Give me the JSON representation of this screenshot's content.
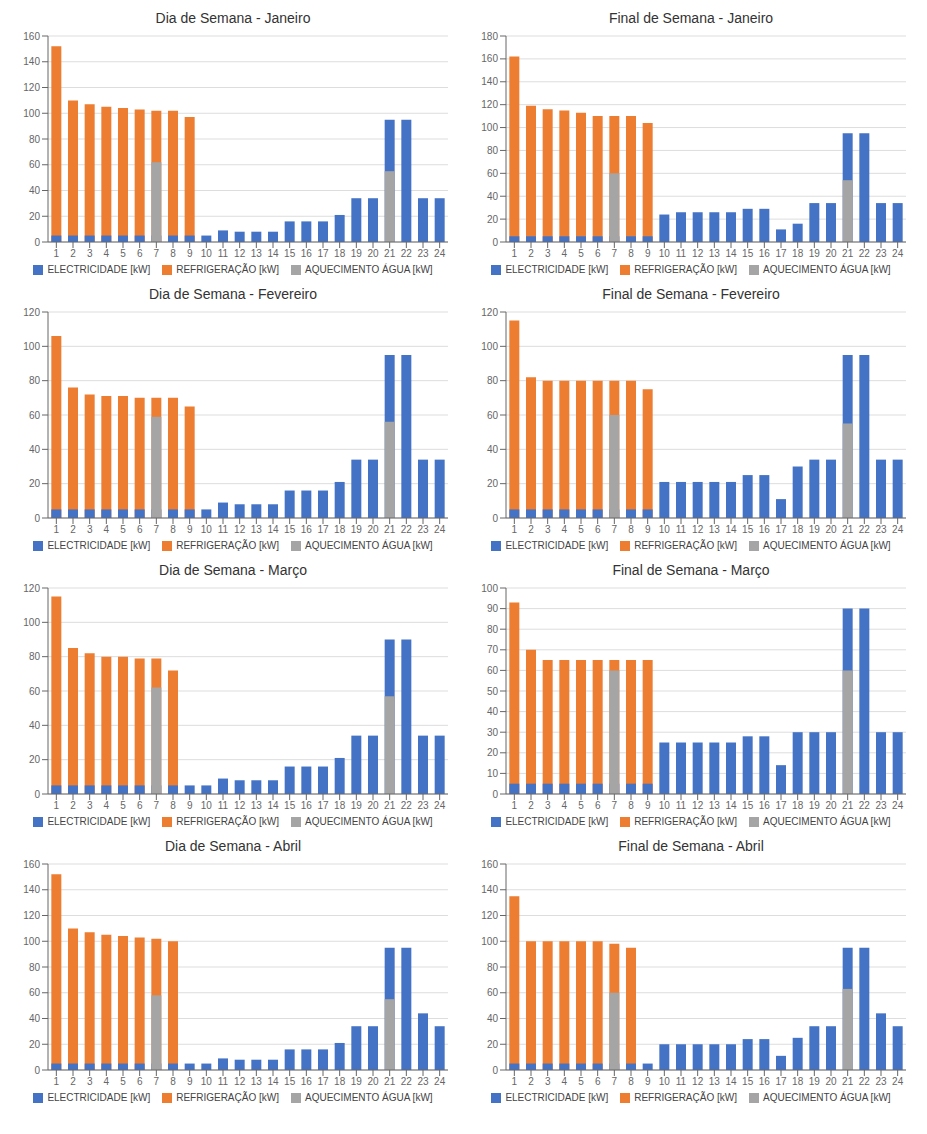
{
  "chart_data": [
    {
      "type": "bar",
      "title": "Dia de Semana - Janeiro",
      "categories": [
        "1",
        "2",
        "3",
        "4",
        "5",
        "6",
        "7",
        "8",
        "9",
        "10",
        "11",
        "12",
        "13",
        "14",
        "15",
        "16",
        "17",
        "18",
        "19",
        "20",
        "21",
        "22",
        "23",
        "24"
      ],
      "series": [
        {
          "name": "ELECTRICIDADE [kW]",
          "color": "#4472C4",
          "values": [
            5,
            5,
            5,
            5,
            5,
            5,
            5,
            5,
            5,
            5,
            9,
            8,
            8,
            8,
            16,
            16,
            16,
            21,
            34,
            34,
            95,
            95,
            34,
            34
          ]
        },
        {
          "name": "REFRIGERAÇÃO [kW]",
          "color": "#ED7D31",
          "values": [
            152,
            110,
            107,
            105,
            104,
            103,
            102,
            102,
            97,
            0,
            0,
            0,
            0,
            0,
            0,
            0,
            0,
            0,
            0,
            0,
            0,
            0,
            0,
            0
          ]
        },
        {
          "name": "AQUECIMENTO ÁGUA [kW]",
          "color": "#A5A5A5",
          "values": [
            0,
            0,
            0,
            0,
            0,
            0,
            62,
            0,
            0,
            0,
            0,
            0,
            0,
            0,
            0,
            0,
            0,
            0,
            0,
            0,
            55,
            0,
            0,
            0
          ]
        }
      ],
      "ylim": [
        0,
        160
      ],
      "yticks": [
        0,
        20,
        40,
        60,
        80,
        100,
        120,
        140,
        160
      ],
      "grid": true,
      "legend": "bottom",
      "stacked": false
    },
    {
      "type": "bar",
      "title": "Final de Semana - Janeiro",
      "categories": [
        "1",
        "2",
        "3",
        "4",
        "5",
        "6",
        "7",
        "8",
        "9",
        "10",
        "11",
        "12",
        "13",
        "14",
        "15",
        "16",
        "17",
        "18",
        "19",
        "20",
        "21",
        "22",
        "23",
        "24"
      ],
      "series": [
        {
          "name": "ELECTRICIDADE [kW]",
          "color": "#4472C4",
          "values": [
            5,
            5,
            5,
            5,
            5,
            5,
            5,
            5,
            5,
            24,
            26,
            26,
            26,
            26,
            29,
            29,
            11,
            16,
            34,
            34,
            95,
            95,
            34,
            34
          ]
        },
        {
          "name": "REFRIGERAÇÃO [kW]",
          "color": "#ED7D31",
          "values": [
            162,
            119,
            116,
            115,
            113,
            110,
            110,
            110,
            104,
            0,
            0,
            0,
            0,
            0,
            0,
            0,
            0,
            0,
            0,
            0,
            0,
            0,
            0,
            0
          ]
        },
        {
          "name": "AQUECIMENTO ÁGUA [kW]",
          "color": "#A5A5A5",
          "values": [
            0,
            0,
            0,
            0,
            0,
            0,
            60,
            0,
            0,
            0,
            0,
            0,
            0,
            0,
            0,
            0,
            0,
            0,
            0,
            0,
            54,
            0,
            0,
            0
          ]
        }
      ],
      "ylim": [
        0,
        180
      ],
      "yticks": [
        0,
        20,
        40,
        60,
        80,
        100,
        120,
        140,
        160,
        180
      ],
      "grid": true,
      "legend": "bottom",
      "stacked": false
    },
    {
      "type": "bar",
      "title": "Dia de Semana - Fevereiro",
      "categories": [
        "1",
        "2",
        "3",
        "4",
        "5",
        "6",
        "7",
        "8",
        "9",
        "10",
        "11",
        "12",
        "13",
        "14",
        "15",
        "16",
        "17",
        "18",
        "19",
        "20",
        "21",
        "22",
        "23",
        "24"
      ],
      "series": [
        {
          "name": "ELECTRICIDADE [kW]",
          "color": "#4472C4",
          "values": [
            5,
            5,
            5,
            5,
            5,
            5,
            5,
            5,
            5,
            5,
            9,
            8,
            8,
            8,
            16,
            16,
            16,
            21,
            34,
            34,
            95,
            95,
            34,
            34
          ]
        },
        {
          "name": "REFRIGERAÇÃO [kW]",
          "color": "#ED7D31",
          "values": [
            106,
            76,
            72,
            71,
            71,
            70,
            70,
            70,
            65,
            0,
            0,
            0,
            0,
            0,
            0,
            0,
            0,
            0,
            0,
            0,
            0,
            0,
            0,
            0
          ]
        },
        {
          "name": "AQUECIMENTO ÁGUA [kW]",
          "color": "#A5A5A5",
          "values": [
            0,
            0,
            0,
            0,
            0,
            0,
            59,
            0,
            0,
            0,
            0,
            0,
            0,
            0,
            0,
            0,
            0,
            0,
            0,
            0,
            56,
            0,
            0,
            0
          ]
        }
      ],
      "ylim": [
        0,
        120
      ],
      "yticks": [
        0,
        20,
        40,
        60,
        80,
        100,
        120
      ],
      "grid": true,
      "legend": "bottom",
      "stacked": false
    },
    {
      "type": "bar",
      "title": "Final de Semana - Fevereiro",
      "categories": [
        "1",
        "2",
        "3",
        "4",
        "5",
        "6",
        "7",
        "8",
        "9",
        "10",
        "11",
        "12",
        "13",
        "14",
        "15",
        "16",
        "17",
        "18",
        "19",
        "20",
        "21",
        "22",
        "23",
        "24"
      ],
      "series": [
        {
          "name": "ELECTRICIDADE [kW]",
          "color": "#4472C4",
          "values": [
            5,
            5,
            5,
            5,
            5,
            5,
            5,
            5,
            5,
            21,
            21,
            21,
            21,
            21,
            25,
            25,
            11,
            30,
            34,
            34,
            95,
            95,
            34,
            34
          ]
        },
        {
          "name": "REFRIGERAÇÃO [kW]",
          "color": "#ED7D31",
          "values": [
            115,
            82,
            80,
            80,
            80,
            80,
            80,
            80,
            75,
            0,
            0,
            0,
            0,
            0,
            0,
            0,
            0,
            0,
            0,
            0,
            0,
            0,
            0,
            0
          ]
        },
        {
          "name": "AQUECIMENTO ÁGUA [kW]",
          "color": "#A5A5A5",
          "values": [
            0,
            0,
            0,
            0,
            0,
            0,
            60,
            0,
            0,
            0,
            0,
            0,
            0,
            0,
            0,
            0,
            0,
            0,
            0,
            0,
            55,
            0,
            0,
            0
          ]
        }
      ],
      "ylim": [
        0,
        120
      ],
      "yticks": [
        0,
        20,
        40,
        60,
        80,
        100,
        120
      ],
      "grid": true,
      "legend": "bottom",
      "stacked": false
    },
    {
      "type": "bar",
      "title": "Dia de Semana - Março",
      "categories": [
        "1",
        "2",
        "3",
        "4",
        "5",
        "6",
        "7",
        "8",
        "9",
        "10",
        "11",
        "12",
        "13",
        "14",
        "15",
        "16",
        "17",
        "18",
        "19",
        "20",
        "21",
        "22",
        "23",
        "24"
      ],
      "series": [
        {
          "name": "ELECTRICIDADE [kW]",
          "color": "#4472C4",
          "values": [
            5,
            5,
            5,
            5,
            5,
            5,
            5,
            5,
            5,
            5,
            9,
            8,
            8,
            8,
            16,
            16,
            16,
            21,
            34,
            34,
            90,
            90,
            34,
            34
          ]
        },
        {
          "name": "REFRIGERAÇÃO [kW]",
          "color": "#ED7D31",
          "values": [
            115,
            85,
            82,
            80,
            80,
            79,
            79,
            72,
            0,
            0,
            0,
            0,
            0,
            0,
            0,
            0,
            0,
            0,
            0,
            0,
            0,
            0,
            0,
            0
          ]
        },
        {
          "name": "AQUECIMENTO ÁGUA [kW]",
          "color": "#A5A5A5",
          "values": [
            0,
            0,
            0,
            0,
            0,
            0,
            62,
            0,
            0,
            0,
            0,
            0,
            0,
            0,
            0,
            0,
            0,
            0,
            0,
            0,
            57,
            0,
            0,
            0
          ]
        }
      ],
      "ylim": [
        0,
        120
      ],
      "yticks": [
        0,
        20,
        40,
        60,
        80,
        100,
        120
      ],
      "grid": true,
      "legend": "bottom",
      "stacked": false
    },
    {
      "type": "bar",
      "title": "Final de Semana - Março",
      "categories": [
        "1",
        "2",
        "3",
        "4",
        "5",
        "6",
        "7",
        "8",
        "9",
        "10",
        "11",
        "12",
        "13",
        "14",
        "15",
        "16",
        "17",
        "18",
        "19",
        "20",
        "21",
        "22",
        "23",
        "24"
      ],
      "series": [
        {
          "name": "ELECTRICIDADE [kW]",
          "color": "#4472C4",
          "values": [
            5,
            5,
            5,
            5,
            5,
            5,
            5,
            5,
            5,
            25,
            25,
            25,
            25,
            25,
            28,
            28,
            14,
            30,
            30,
            30,
            90,
            90,
            30,
            30
          ]
        },
        {
          "name": "REFRIGERAÇÃO [kW]",
          "color": "#ED7D31",
          "values": [
            93,
            70,
            65,
            65,
            65,
            65,
            65,
            65,
            65,
            0,
            0,
            0,
            0,
            0,
            0,
            0,
            0,
            0,
            0,
            0,
            0,
            0,
            0,
            0
          ]
        },
        {
          "name": "AQUECIMENTO ÁGUA [kW]",
          "color": "#A5A5A5",
          "values": [
            0,
            0,
            0,
            0,
            0,
            0,
            60,
            0,
            0,
            0,
            0,
            0,
            0,
            0,
            0,
            0,
            0,
            0,
            0,
            0,
            60,
            0,
            0,
            0
          ]
        }
      ],
      "ylim": [
        0,
        100
      ],
      "yticks": [
        0,
        10,
        20,
        30,
        40,
        50,
        60,
        70,
        80,
        90,
        100
      ],
      "grid": true,
      "legend": "bottom",
      "stacked": false
    },
    {
      "type": "bar",
      "title": "Dia de Semana - Abril",
      "categories": [
        "1",
        "2",
        "3",
        "4",
        "5",
        "6",
        "7",
        "8",
        "9",
        "10",
        "11",
        "12",
        "13",
        "14",
        "15",
        "16",
        "17",
        "18",
        "19",
        "20",
        "21",
        "22",
        "23",
        "24"
      ],
      "series": [
        {
          "name": "ELECTRICIDADE [kW]",
          "color": "#4472C4",
          "values": [
            5,
            5,
            5,
            5,
            5,
            5,
            5,
            5,
            5,
            5,
            9,
            8,
            8,
            8,
            16,
            16,
            16,
            21,
            34,
            34,
            95,
            95,
            44,
            34
          ]
        },
        {
          "name": "REFRIGERAÇÃO [kW]",
          "color": "#ED7D31",
          "values": [
            152,
            110,
            107,
            105,
            104,
            103,
            102,
            100,
            0,
            0,
            0,
            0,
            0,
            0,
            0,
            0,
            0,
            0,
            0,
            0,
            0,
            0,
            0,
            0
          ]
        },
        {
          "name": "AQUECIMENTO ÁGUA [kW]",
          "color": "#A5A5A5",
          "values": [
            0,
            0,
            0,
            0,
            0,
            0,
            58,
            0,
            0,
            0,
            0,
            0,
            0,
            0,
            0,
            0,
            0,
            0,
            0,
            0,
            55,
            0,
            0,
            0
          ]
        }
      ],
      "ylim": [
        0,
        160
      ],
      "yticks": [
        0,
        20,
        40,
        60,
        80,
        100,
        120,
        140,
        160
      ],
      "grid": true,
      "legend": "bottom",
      "stacked": false
    },
    {
      "type": "bar",
      "title": "Final de Semana - Abril",
      "categories": [
        "1",
        "2",
        "3",
        "4",
        "5",
        "6",
        "7",
        "8",
        "9",
        "10",
        "11",
        "12",
        "13",
        "14",
        "15",
        "16",
        "17",
        "18",
        "19",
        "20",
        "21",
        "22",
        "23",
        "24"
      ],
      "series": [
        {
          "name": "ELECTRICIDADE [kW]",
          "color": "#4472C4",
          "values": [
            5,
            5,
            5,
            5,
            5,
            5,
            5,
            5,
            5,
            20,
            20,
            20,
            20,
            20,
            24,
            24,
            11,
            25,
            34,
            34,
            95,
            95,
            44,
            34
          ]
        },
        {
          "name": "REFRIGERAÇÃO [kW]",
          "color": "#ED7D31",
          "values": [
            135,
            100,
            100,
            100,
            100,
            100,
            98,
            95,
            0,
            0,
            0,
            0,
            0,
            0,
            0,
            0,
            0,
            0,
            0,
            0,
            0,
            0,
            0,
            0
          ]
        },
        {
          "name": "AQUECIMENTO ÁGUA [kW]",
          "color": "#A5A5A5",
          "values": [
            0,
            0,
            0,
            0,
            0,
            0,
            60,
            0,
            0,
            0,
            0,
            0,
            0,
            0,
            0,
            0,
            0,
            0,
            0,
            0,
            63,
            0,
            0,
            0
          ]
        }
      ],
      "ylim": [
        0,
        160
      ],
      "yticks": [
        0,
        20,
        40,
        60,
        80,
        100,
        120,
        140,
        160
      ],
      "grid": true,
      "legend": "bottom",
      "stacked": false
    }
  ]
}
